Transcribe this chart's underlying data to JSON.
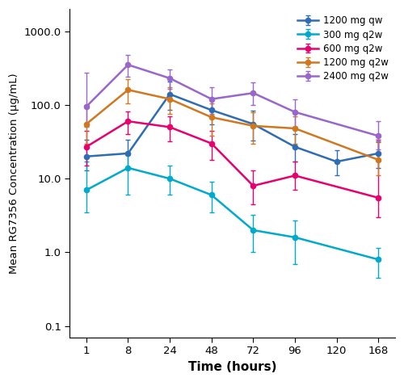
{
  "xlabel": "Time (hours)",
  "ylabel": "Mean RG7356 Concentration (µg/mL)",
  "xtick_labels": [
    "1",
    "8",
    "24",
    "48",
    "72",
    "96",
    "120",
    "168"
  ],
  "ylim": [
    0.07,
    2000
  ],
  "yticks": [
    0.1,
    1.0,
    10.0,
    100.0,
    1000.0
  ],
  "ytick_labels": [
    "0.1",
    "1.0",
    "10.0",
    "100.0",
    "1000.0"
  ],
  "series": [
    {
      "label": "1200 mg qw",
      "color": "#2E6DB4",
      "xi": [
        0,
        1,
        2,
        3,
        4,
        5,
        6,
        7
      ],
      "y": [
        20,
        22,
        140,
        85,
        55,
        27,
        17,
        22
      ],
      "yerr_lo": [
        7,
        8,
        55,
        30,
        22,
        10,
        6,
        8
      ],
      "yerr_hi": [
        14,
        12,
        65,
        40,
        28,
        13,
        7,
        10
      ]
    },
    {
      "label": "300 mg q2w",
      "color": "#00AACC",
      "xi": [
        0,
        1,
        2,
        3,
        4,
        5,
        7
      ],
      "y": [
        7.0,
        14.0,
        10.0,
        6.0,
        2.0,
        1.6,
        0.8
      ],
      "yerr_lo": [
        3.5,
        8.0,
        4.0,
        2.5,
        1.0,
        0.9,
        0.35
      ],
      "yerr_hi": [
        10.0,
        7.0,
        5.0,
        3.0,
        1.2,
        1.1,
        0.35
      ]
    },
    {
      "label": "600 mg q2w",
      "color": "#E8006E",
      "xi": [
        0,
        1,
        2,
        3,
        4,
        5,
        7
      ],
      "y": [
        27.0,
        60.0,
        50.0,
        30.0,
        8.0,
        11.0,
        5.5
      ],
      "yerr_lo": [
        12.0,
        20.0,
        18.0,
        12.0,
        3.5,
        4.0,
        2.5
      ],
      "yerr_hi": [
        18.0,
        22.0,
        20.0,
        15.0,
        5.0,
        6.0,
        28.0
      ]
    },
    {
      "label": "1200 mg q2w",
      "color": "#D07820",
      "xi": [
        0,
        1,
        2,
        3,
        4,
        5,
        7
      ],
      "y": [
        55.0,
        160.0,
        120.0,
        68.0,
        52.0,
        48.0,
        18.0
      ],
      "yerr_lo": [
        25.0,
        55.0,
        45.0,
        30.0,
        22.0,
        18.0,
        7.0
      ],
      "yerr_hi": [
        45.0,
        65.0,
        55.0,
        38.0,
        28.0,
        22.0,
        13.0
      ]
    },
    {
      "label": "2400 mg q2w",
      "color": "#9966CC",
      "xi": [
        0,
        1,
        2,
        3,
        4,
        5,
        7
      ],
      "y": [
        95.0,
        350.0,
        230.0,
        120.0,
        145.0,
        80.0,
        38.0
      ],
      "yerr_lo": [
        45.0,
        110.0,
        65.0,
        45.0,
        45.0,
        30.0,
        13.0
      ],
      "yerr_hi": [
        180.0,
        130.0,
        75.0,
        55.0,
        55.0,
        38.0,
        22.0
      ]
    }
  ]
}
